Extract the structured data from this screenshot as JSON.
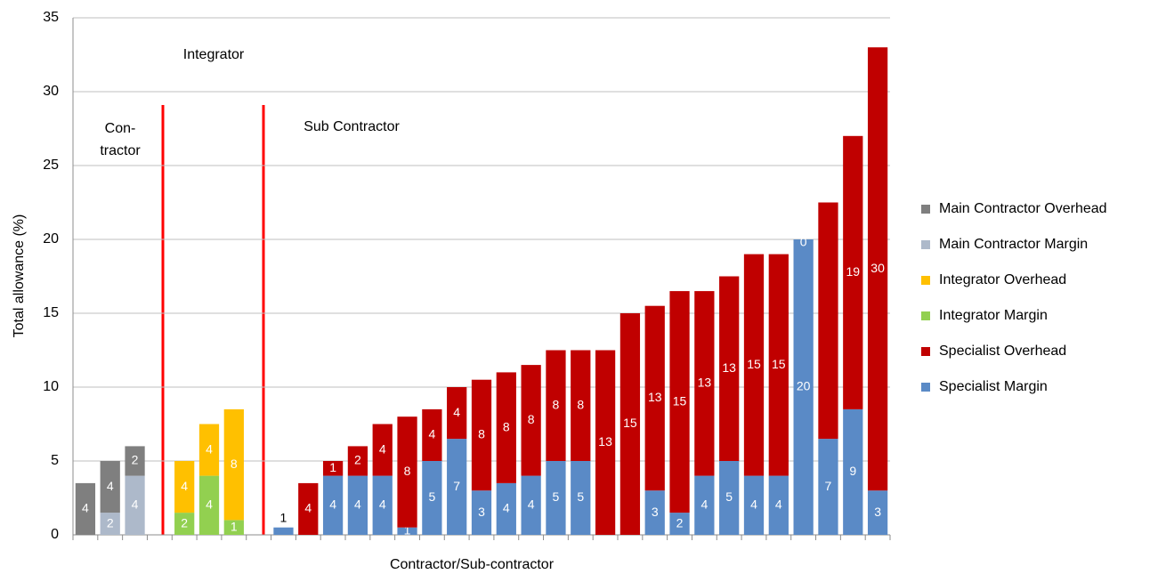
{
  "chart_data": {
    "type": "bar",
    "stacked": true,
    "xlabel": "Contractor/Sub-contractor",
    "ylabel": "Total allowance (%)",
    "annotations": [
      "Con-",
      "tractor",
      "Integrator",
      "Sub Contractor"
    ],
    "categories": [
      null,
      null,
      null,
      null,
      null,
      null,
      null,
      null,
      null,
      null,
      null,
      null,
      null,
      null,
      null,
      null,
      null,
      null,
      null,
      null,
      null,
      null,
      null,
      null,
      null,
      null,
      null,
      null,
      null,
      null,
      null,
      null,
      null
    ],
    "ylim": [
      0,
      35
    ],
    "yticks": [
      0,
      5,
      10,
      15,
      20,
      25,
      30,
      35
    ],
    "grid": true,
    "legend": "right",
    "series": [
      {
        "name": "Main Contractor Overhead",
        "color": "#7f7f7f",
        "values": [
          3.5,
          3.5,
          2,
          null,
          null,
          null,
          null,
          null,
          null,
          null,
          null,
          null,
          null,
          null,
          null,
          null,
          null,
          null,
          null,
          null,
          null,
          null,
          null,
          null,
          null,
          null,
          null,
          null,
          null,
          null,
          null,
          null,
          null
        ],
        "value_labels": [
          "4",
          "4",
          "2",
          null,
          null,
          null,
          null,
          null,
          null,
          null,
          null,
          null,
          null,
          null,
          null,
          null,
          null,
          null,
          null,
          null,
          null,
          null,
          null,
          null,
          null,
          null,
          null,
          null,
          null,
          null,
          null,
          null,
          null
        ]
      },
      {
        "name": "Main Contractor Margin",
        "color": "#adb9ca",
        "values": [
          null,
          1.5,
          4,
          null,
          null,
          null,
          null,
          null,
          null,
          null,
          null,
          null,
          null,
          null,
          null,
          null,
          null,
          null,
          null,
          null,
          null,
          null,
          null,
          null,
          null,
          null,
          null,
          null,
          null,
          null,
          null,
          null,
          null
        ],
        "value_labels": [
          null,
          "2",
          "4",
          null,
          null,
          null,
          null,
          null,
          null,
          null,
          null,
          null,
          null,
          null,
          null,
          null,
          null,
          null,
          null,
          null,
          null,
          null,
          null,
          null,
          null,
          null,
          null,
          null,
          null,
          null,
          null,
          null,
          null
        ]
      },
      {
        "name": "Integrator Overhead",
        "color": "#ffc000",
        "values": [
          null,
          null,
          null,
          null,
          3.5,
          3.5,
          7.5,
          null,
          null,
          null,
          null,
          null,
          null,
          null,
          null,
          null,
          null,
          null,
          null,
          null,
          null,
          null,
          null,
          null,
          null,
          null,
          null,
          null,
          null,
          null,
          null,
          null,
          null
        ],
        "value_labels": [
          null,
          null,
          null,
          null,
          "4",
          "4",
          "8",
          null,
          null,
          null,
          null,
          null,
          null,
          null,
          null,
          null,
          null,
          null,
          null,
          null,
          null,
          null,
          null,
          null,
          null,
          null,
          null,
          null,
          null,
          null,
          null,
          null,
          null
        ]
      },
      {
        "name": "Integrator Margin",
        "color": "#92d050",
        "values": [
          null,
          null,
          null,
          null,
          1.5,
          4,
          1,
          null,
          null,
          null,
          null,
          null,
          null,
          null,
          null,
          null,
          null,
          null,
          null,
          null,
          null,
          null,
          null,
          null,
          null,
          null,
          null,
          null,
          null,
          null,
          null,
          null,
          null
        ],
        "value_labels": [
          null,
          null,
          null,
          null,
          "2",
          "4",
          "1",
          null,
          null,
          null,
          null,
          null,
          null,
          null,
          null,
          null,
          null,
          null,
          null,
          null,
          null,
          null,
          null,
          null,
          null,
          null,
          null,
          null,
          null,
          null,
          null,
          null,
          null
        ]
      },
      {
        "name": "Specialist Overhead",
        "color": "#c00000",
        "values": [
          null,
          null,
          null,
          null,
          null,
          null,
          null,
          null,
          null,
          3.5,
          1,
          2,
          3.5,
          7.5,
          3.5,
          3.5,
          7.5,
          7.5,
          7.5,
          7.5,
          7.5,
          12.5,
          15,
          12.5,
          15,
          12.5,
          12.5,
          15,
          15,
          0,
          16,
          18.5,
          30
        ],
        "value_labels": [
          null,
          null,
          null,
          null,
          null,
          null,
          null,
          null,
          null,
          "4",
          "1",
          "2",
          "4",
          "8",
          "4",
          "4",
          "8",
          "8",
          "8",
          "8",
          "8",
          "13",
          "15",
          "13",
          "15",
          "13",
          "13",
          "15",
          "15",
          "0",
          null,
          "19",
          "30"
        ]
      },
      {
        "name": "Specialist Margin",
        "color": "#5a8ac6",
        "values": [
          null,
          null,
          null,
          null,
          null,
          null,
          null,
          null,
          0.5,
          null,
          4,
          4,
          4,
          0.5,
          5,
          6.5,
          3,
          3.5,
          4,
          5,
          5,
          null,
          null,
          3,
          1.5,
          4,
          5,
          4,
          4,
          20,
          6.5,
          8.5,
          3
        ],
        "value_labels": [
          null,
          null,
          null,
          null,
          null,
          null,
          null,
          null,
          "1",
          null,
          "4",
          "4",
          "4",
          "1",
          "5",
          "7",
          "3",
          "4",
          "4",
          "5",
          "5",
          null,
          null,
          "3",
          "2",
          "4",
          "5",
          "4",
          "4",
          "20",
          "7",
          "9",
          "3"
        ]
      }
    ]
  }
}
